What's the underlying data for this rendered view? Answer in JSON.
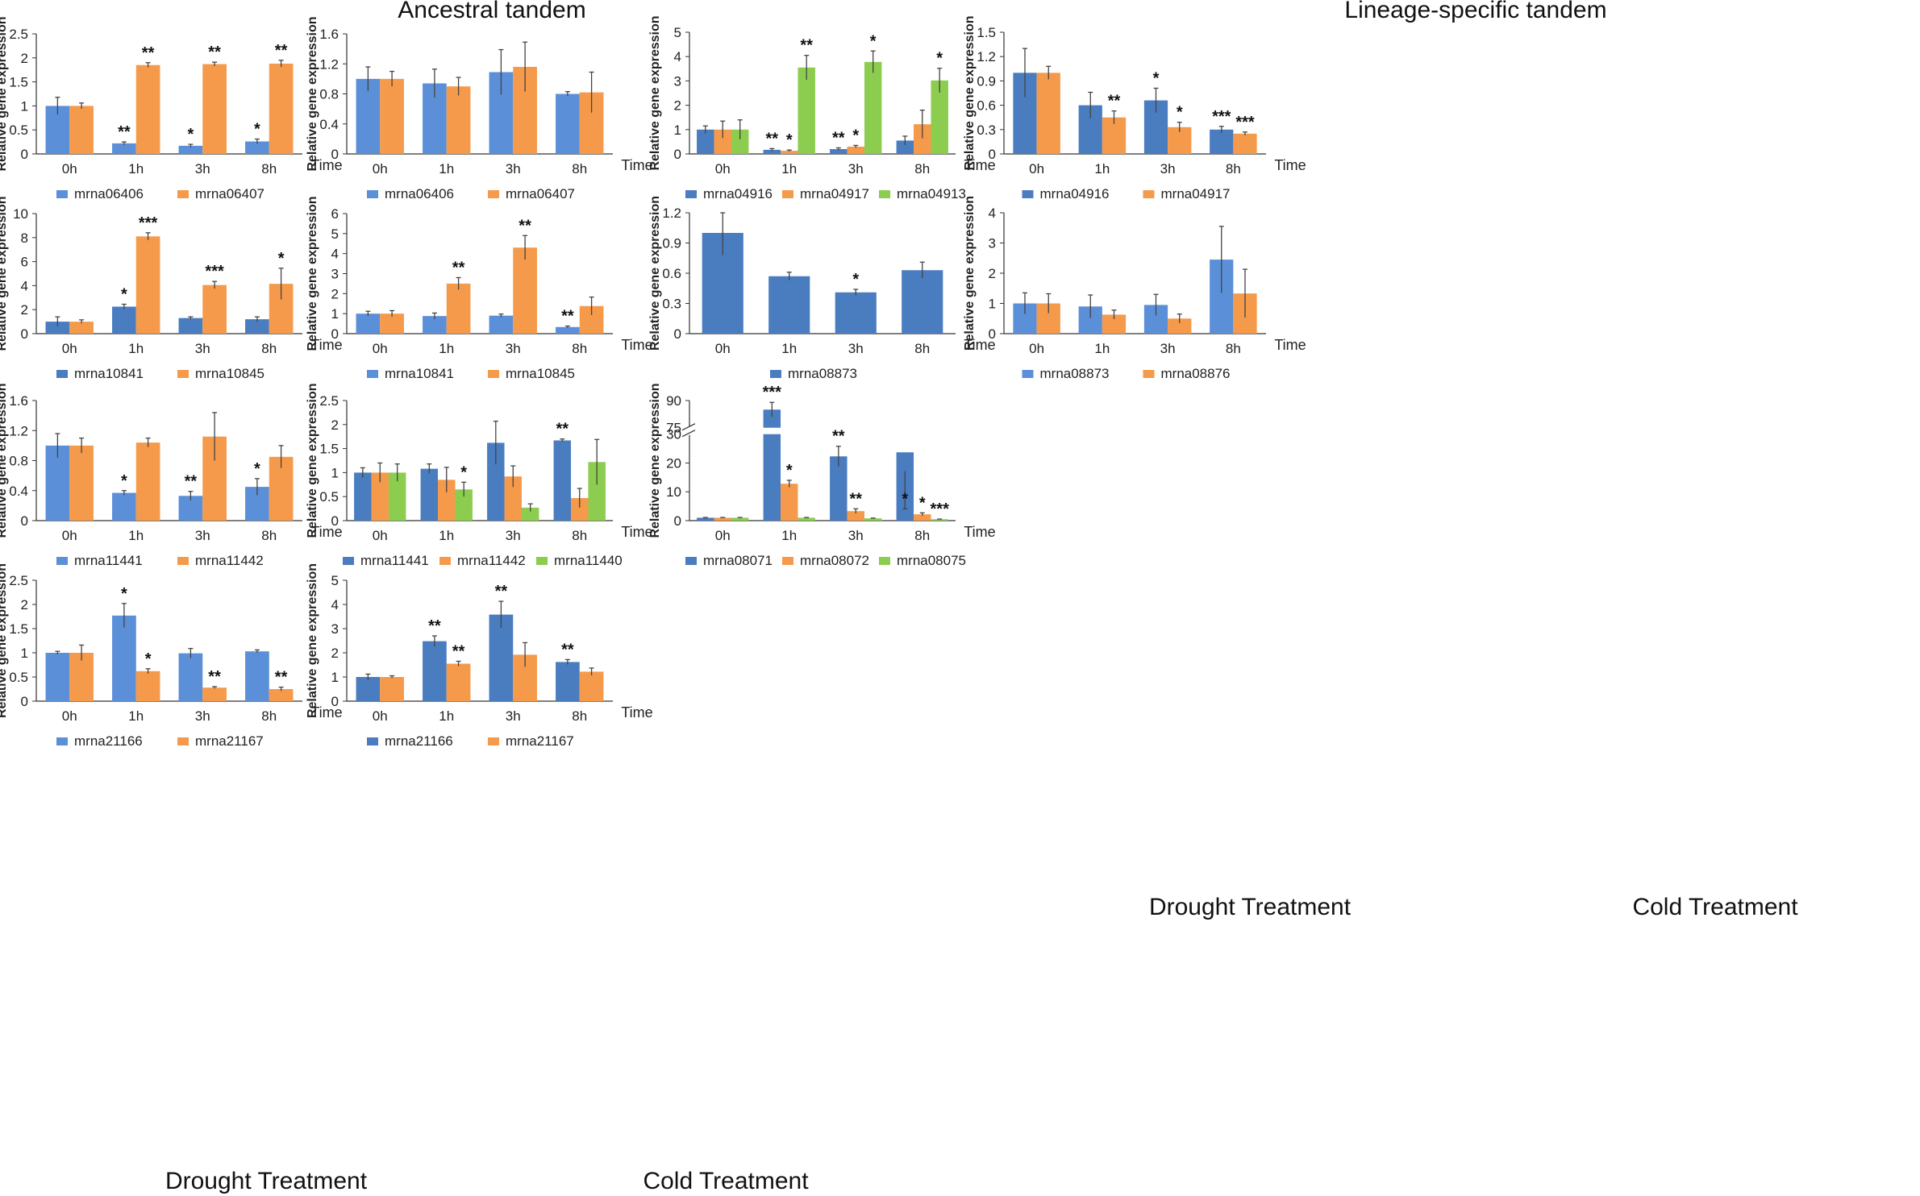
{
  "figure": {
    "headings": {
      "ancestral": "Ancestral tandem",
      "lineage": "Lineage-specific tandem",
      "drought_left": "Drought Treatment",
      "cold_left": "Cold Treatment",
      "drought_right": "Drought Treatment",
      "cold_right": "Cold Treatment"
    },
    "ylabel": "Relative gene expression",
    "xlabel": "Time",
    "colors": {
      "blue": "#5b8fd8",
      "darkblue": "#4a7cc0",
      "orange": "#f59a4b",
      "green": "#8ccd4f"
    }
  },
  "chart_data": [
    {
      "type": "bar",
      "title": "Ancestral tandem - Drought",
      "categories": [
        "0h",
        "1h",
        "3h",
        "8h"
      ],
      "ylim": [
        0,
        2.5
      ],
      "yticks": [
        "0",
        "0.5",
        "1",
        "1.5",
        "2",
        "2.5"
      ],
      "series": [
        {
          "name": "mrna06406",
          "color": "#5b8fd8",
          "values": [
            1.0,
            0.22,
            0.17,
            0.26
          ],
          "errors": [
            0.18,
            0.03,
            0.03,
            0.05
          ],
          "sig": [
            "",
            "**",
            "*",
            "*"
          ]
        },
        {
          "name": "mrna06407",
          "color": "#f59a4b",
          "values": [
            1.0,
            1.85,
            1.87,
            1.88
          ],
          "errors": [
            0.06,
            0.05,
            0.04,
            0.07
          ],
          "sig": [
            "",
            "**",
            "**",
            "**"
          ]
        }
      ]
    },
    {
      "type": "bar",
      "title": "Ancestral tandem - Cold",
      "categories": [
        "0h",
        "1h",
        "3h",
        "8h"
      ],
      "ylim": [
        0,
        1.6
      ],
      "yticks": [
        "0",
        "0.4",
        "0.8",
        "1.2",
        "1.6"
      ],
      "series": [
        {
          "name": "mrna06406",
          "color": "#5b8fd8",
          "values": [
            1.0,
            0.94,
            1.09,
            0.8
          ],
          "errors": [
            0.16,
            0.19,
            0.3,
            0.03
          ],
          "sig": [
            "",
            "",
            "",
            ""
          ]
        },
        {
          "name": "mrna06407",
          "color": "#f59a4b",
          "values": [
            1.0,
            0.9,
            1.16,
            0.82
          ],
          "errors": [
            0.1,
            0.12,
            0.33,
            0.27
          ],
          "sig": [
            "",
            "",
            "",
            ""
          ]
        }
      ]
    },
    {
      "type": "bar",
      "title": "Lineage-specific - Drought",
      "categories": [
        "0h",
        "1h",
        "3h",
        "8h"
      ],
      "ylim": [
        0,
        5
      ],
      "yticks": [
        "0",
        "1",
        "2",
        "3",
        "4",
        "5"
      ],
      "series": [
        {
          "name": "mrna04916",
          "color": "#4a7cc0",
          "values": [
            1.0,
            0.17,
            0.2,
            0.55
          ],
          "errors": [
            0.15,
            0.05,
            0.05,
            0.18
          ],
          "sig": [
            "",
            "**",
            "**",
            ""
          ]
        },
        {
          "name": "mrna04917",
          "color": "#f59a4b",
          "values": [
            1.0,
            0.13,
            0.3,
            1.22
          ],
          "errors": [
            0.35,
            0.03,
            0.05,
            0.58
          ],
          "sig": [
            "",
            "*",
            "*",
            ""
          ]
        },
        {
          "name": "mrna04913",
          "color": "#8ccd4f",
          "values": [
            1.0,
            3.55,
            3.78,
            3.02
          ],
          "errors": [
            0.4,
            0.5,
            0.45,
            0.5
          ],
          "sig": [
            "",
            "**",
            "*",
            "*"
          ]
        }
      ]
    },
    {
      "type": "bar",
      "title": "Lineage-specific - Cold",
      "categories": [
        "0h",
        "1h",
        "3h",
        "8h"
      ],
      "ylim": [
        0,
        1.5
      ],
      "yticks": [
        "0",
        "0.3",
        "0.6",
        "0.9",
        "1.2",
        "1.5"
      ],
      "series": [
        {
          "name": "mrna04916",
          "color": "#4a7cc0",
          "values": [
            1.0,
            0.6,
            0.66,
            0.3
          ],
          "errors": [
            0.3,
            0.16,
            0.15,
            0.04
          ],
          "sig": [
            "",
            "",
            "*",
            "***"
          ]
        },
        {
          "name": "mrna04917",
          "color": "#f59a4b",
          "values": [
            1.0,
            0.45,
            0.33,
            0.25
          ],
          "errors": [
            0.08,
            0.08,
            0.06,
            0.02
          ],
          "sig": [
            "",
            "**",
            "*",
            "***"
          ]
        }
      ]
    },
    {
      "type": "bar",
      "title": "Ancestral tandem - Drought",
      "categories": [
        "0h",
        "1h",
        "3h",
        "8h"
      ],
      "ylim": [
        0,
        10
      ],
      "yticks": [
        "0",
        "2",
        "4",
        "6",
        "8",
        "10"
      ],
      "series": [
        {
          "name": "mrna10841",
          "color": "#4a7cc0",
          "values": [
            1.0,
            2.25,
            1.3,
            1.2
          ],
          "errors": [
            0.4,
            0.2,
            0.1,
            0.2
          ],
          "sig": [
            "",
            "*",
            "",
            ""
          ]
        },
        {
          "name": "mrna10845",
          "color": "#f59a4b",
          "values": [
            1.0,
            8.1,
            4.05,
            4.15
          ],
          "errors": [
            0.15,
            0.3,
            0.3,
            1.3
          ],
          "sig": [
            "",
            "***",
            "***",
            "*"
          ]
        }
      ]
    },
    {
      "type": "bar",
      "title": "Ancestral tandem - Cold",
      "categories": [
        "0h",
        "1h",
        "3h",
        "8h"
      ],
      "ylim": [
        0,
        6
      ],
      "yticks": [
        "0",
        "1",
        "2",
        "3",
        "4",
        "5",
        "6"
      ],
      "series": [
        {
          "name": "mrna10841",
          "color": "#5b8fd8",
          "values": [
            1.0,
            0.88,
            0.9,
            0.33
          ],
          "errors": [
            0.12,
            0.15,
            0.08,
            0.05
          ],
          "sig": [
            "",
            "",
            "",
            "**"
          ]
        },
        {
          "name": "mrna10845",
          "color": "#f59a4b",
          "values": [
            1.0,
            2.5,
            4.3,
            1.38
          ],
          "errors": [
            0.15,
            0.3,
            0.6,
            0.45
          ],
          "sig": [
            "",
            "**",
            "**",
            ""
          ]
        }
      ]
    },
    {
      "type": "bar",
      "title": "Lineage-specific - Drought",
      "categories": [
        "0h",
        "1h",
        "3h",
        "8h"
      ],
      "ylim": [
        0,
        1.2
      ],
      "yticks": [
        "0",
        "0.3",
        "0.6",
        "0.9",
        "1.2"
      ],
      "series": [
        {
          "name": "mrna08873",
          "color": "#4a7cc0",
          "values": [
            1.0,
            0.57,
            0.41,
            0.63
          ],
          "errors": [
            0.22,
            0.04,
            0.03,
            0.08
          ],
          "sig": [
            "",
            "",
            "*",
            ""
          ]
        }
      ]
    },
    {
      "type": "bar",
      "title": "Lineage-specific - Cold",
      "categories": [
        "0h",
        "1h",
        "3h",
        "8h"
      ],
      "ylim": [
        0,
        4
      ],
      "yticks": [
        "0",
        "1",
        "2",
        "3",
        "4"
      ],
      "series": [
        {
          "name": "mrna08873",
          "color": "#5b8fd8",
          "values": [
            1.0,
            0.9,
            0.95,
            2.45
          ],
          "errors": [
            0.35,
            0.38,
            0.35,
            1.1
          ],
          "sig": [
            "",
            "",
            "",
            ""
          ]
        },
        {
          "name": "mrna08876",
          "color": "#f59a4b",
          "values": [
            1.0,
            0.63,
            0.5,
            1.33
          ],
          "errors": [
            0.32,
            0.15,
            0.15,
            0.8
          ],
          "sig": [
            "",
            "",
            "",
            ""
          ]
        }
      ]
    },
    {
      "type": "bar",
      "title": "Ancestral tandem - Drought",
      "categories": [
        "0h",
        "1h",
        "3h",
        "8h"
      ],
      "ylim": [
        0,
        1.6
      ],
      "yticks": [
        "0",
        "0.4",
        "0.8",
        "1.2",
        "1.6"
      ],
      "series": [
        {
          "name": "mrna11441",
          "color": "#5b8fd8",
          "values": [
            1.0,
            0.37,
            0.33,
            0.45
          ],
          "errors": [
            0.16,
            0.03,
            0.06,
            0.11
          ],
          "sig": [
            "",
            "*",
            "**",
            "*"
          ]
        },
        {
          "name": "mrna11442",
          "color": "#f59a4b",
          "values": [
            1.0,
            1.04,
            1.12,
            0.85
          ],
          "errors": [
            0.1,
            0.06,
            0.32,
            0.15
          ],
          "sig": [
            "",
            "",
            "",
            ""
          ]
        }
      ]
    },
    {
      "type": "bar",
      "title": "Ancestral tandem - Cold",
      "categories": [
        "0h",
        "1h",
        "3h",
        "8h"
      ],
      "ylim": [
        0,
        2.5
      ],
      "yticks": [
        "0",
        "0.5",
        "1",
        "1.5",
        "2",
        "2.5"
      ],
      "series": [
        {
          "name": "mrna11441",
          "color": "#4a7cc0",
          "values": [
            1.0,
            1.08,
            1.62,
            1.67
          ],
          "errors": [
            0.1,
            0.1,
            0.45,
            0.03
          ],
          "sig": [
            "",
            "",
            "",
            "**"
          ]
        },
        {
          "name": "mrna11442",
          "color": "#f59a4b",
          "values": [
            1.0,
            0.85,
            0.92,
            0.47
          ],
          "errors": [
            0.2,
            0.26,
            0.22,
            0.2
          ],
          "sig": [
            "",
            "",
            "",
            ""
          ]
        },
        {
          "name": "mrna11440",
          "color": "#8ccd4f",
          "values": [
            1.0,
            0.65,
            0.27,
            1.22
          ],
          "errors": [
            0.18,
            0.15,
            0.08,
            0.47
          ],
          "sig": [
            "",
            "*",
            "",
            ""
          ]
        }
      ]
    },
    {
      "type": "bar",
      "title": "Lineage-specific - Drought (broken axis)",
      "categories": [
        "0h",
        "1h",
        "3h",
        "8h"
      ],
      "ylim": [
        0,
        90
      ],
      "yticks": [
        "0",
        "10",
        "20",
        "30",
        "75",
        "90"
      ],
      "axis_break": [
        30,
        75
      ],
      "series": [
        {
          "name": "mrna08071",
          "color": "#4a7cc0",
          "values": [
            1.0,
            85,
            22.3,
            23.7
          ],
          "errors": [
            0.1,
            4,
            3.5,
            6.5
          ],
          "sig": [
            "",
            "***",
            "**",
            "*"
          ]
        },
        {
          "name": "mrna08072",
          "color": "#f59a4b",
          "values": [
            1.0,
            12.8,
            3.3,
            2.2
          ],
          "errors": [
            0.1,
            1.2,
            0.8,
            0.5
          ],
          "sig": [
            "",
            "*",
            "**",
            "*"
          ]
        },
        {
          "name": "mrna08075",
          "color": "#8ccd4f",
          "values": [
            1.0,
            1.0,
            0.8,
            0.5
          ],
          "errors": [
            0.1,
            0.1,
            0.1,
            0.05
          ],
          "sig": [
            "",
            "",
            "",
            "***"
          ]
        }
      ]
    },
    {
      "type": "bar",
      "title": "Ancestral tandem - Drought",
      "categories": [
        "0h",
        "1h",
        "3h",
        "8h"
      ],
      "ylim": [
        0,
        2.5
      ],
      "yticks": [
        "0",
        "0.5",
        "1",
        "1.5",
        "2",
        "2.5"
      ],
      "series": [
        {
          "name": "mrna21166",
          "color": "#5b8fd8",
          "values": [
            1.0,
            1.77,
            0.99,
            1.03
          ],
          "errors": [
            0.03,
            0.25,
            0.1,
            0.03
          ],
          "sig": [
            "",
            "*",
            "",
            ""
          ]
        },
        {
          "name": "mrna21167",
          "color": "#f59a4b",
          "values": [
            1.0,
            0.62,
            0.28,
            0.25
          ],
          "errors": [
            0.16,
            0.05,
            0.02,
            0.04
          ],
          "sig": [
            "",
            "*",
            "**",
            "**"
          ]
        }
      ]
    },
    {
      "type": "bar",
      "title": "Ancestral tandem - Cold",
      "categories": [
        "0h",
        "1h",
        "3h",
        "8h"
      ],
      "ylim": [
        0,
        5
      ],
      "yticks": [
        "0",
        "1",
        "2",
        "3",
        "4",
        "5"
      ],
      "series": [
        {
          "name": "mrna21166",
          "color": "#4a7cc0",
          "values": [
            1.0,
            2.48,
            3.58,
            1.62
          ],
          "errors": [
            0.12,
            0.22,
            0.55,
            0.1
          ],
          "sig": [
            "",
            "**",
            "**",
            "**"
          ]
        },
        {
          "name": "mrna21167",
          "color": "#f59a4b",
          "values": [
            1.0,
            1.55,
            1.92,
            1.22
          ],
          "errors": [
            0.05,
            0.1,
            0.5,
            0.15
          ],
          "sig": [
            "",
            "**",
            "",
            ""
          ]
        }
      ]
    }
  ]
}
